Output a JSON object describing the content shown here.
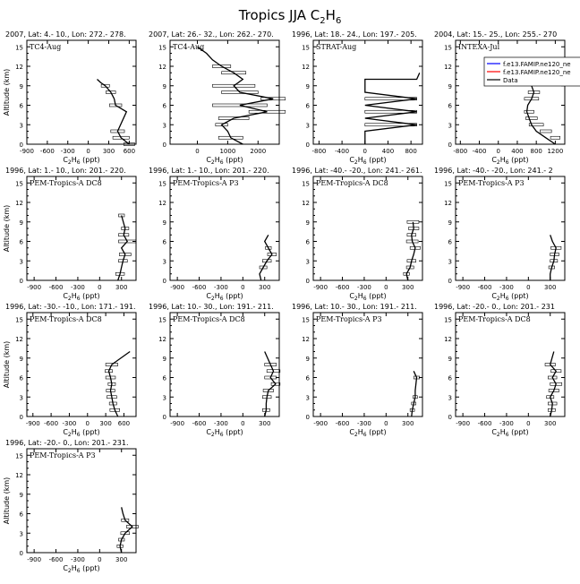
{
  "figure": {
    "title": "Tropics JJA C",
    "title_sub": "2",
    "title_tail": "H",
    "title_sub2": "6"
  },
  "common": {
    "ylabel": "Altitude (km)",
    "xlabel_main": "C",
    "xlabel_sub1": "2",
    "xlabel_mid": "H",
    "xlabel_sub2": "6",
    "xlabel_unit": " (ppt)",
    "yticks": [
      "0",
      "3",
      "6",
      "9",
      "12",
      "15"
    ],
    "colors": {
      "line": "#000000",
      "bar": "#000000",
      "model_blue": "#0000ff",
      "model_red": "#ff0000"
    }
  },
  "chart_data": [
    {
      "type": "line",
      "header": "2007, Lat: 4.- 10., Lon: 272.- 278.",
      "campaign": "TC4-Aug",
      "xlim": [
        -900,
        700
      ],
      "ylim": [
        0,
        16
      ],
      "xticks": [
        -900,
        -600,
        -300,
        0,
        300,
        600
      ],
      "x": [
        600,
        480,
        430,
        560,
        400,
        380,
        330,
        250,
        180,
        130
      ],
      "y": [
        0,
        1,
        2,
        5,
        6,
        7,
        8,
        9,
        9.5,
        10
      ],
      "bars": [
        [
          600,
          0,
          80
        ],
        [
          480,
          1,
          120
        ],
        [
          430,
          2,
          100
        ],
        [
          400,
          6,
          90
        ],
        [
          330,
          8,
          70
        ],
        [
          250,
          9,
          60
        ]
      ]
    },
    {
      "type": "line",
      "header": "2007, Lat: 26.- 32., Lon: 262.- 270.",
      "campaign": "TC4-Aug",
      "xlim": [
        -900,
        2700
      ],
      "ylim": [
        0,
        16
      ],
      "xticks": [
        0,
        1000,
        2000
      ],
      "x": [
        1500,
        1100,
        1000,
        800,
        1200,
        2300,
        1400,
        2500,
        1400,
        1200,
        1500,
        1200,
        800,
        500,
        300,
        0
      ],
      "y": [
        0,
        1,
        2,
        3,
        4,
        5,
        6,
        7,
        8,
        9,
        10,
        11,
        12,
        13,
        14,
        15
      ],
      "bars": [
        [
          1100,
          1,
          400
        ],
        [
          800,
          3,
          200
        ],
        [
          1200,
          4,
          500
        ],
        [
          2300,
          5,
          600
        ],
        [
          1400,
          6,
          900
        ],
        [
          2500,
          7,
          400
        ],
        [
          1400,
          8,
          600
        ],
        [
          1200,
          9,
          700
        ],
        [
          1200,
          11,
          400
        ],
        [
          800,
          12,
          300
        ]
      ]
    },
    {
      "type": "line",
      "header": "1996, Lat: 18.- 24., Lon: 197.- 205.",
      "campaign": "STRAT-Aug",
      "xlim": [
        -900,
        1000
      ],
      "ylim": [
        0,
        16
      ],
      "xticks": [
        -800,
        -400,
        0,
        400,
        800
      ],
      "x": [
        0,
        0,
        0,
        900,
        0,
        900,
        0,
        900,
        0,
        0,
        0,
        900,
        950
      ],
      "y": [
        0,
        1,
        2,
        3,
        4,
        5,
        6,
        7,
        8,
        9,
        10,
        10,
        11
      ],
      "bars": [
        [
          450,
          3,
          450
        ],
        [
          450,
          5,
          450
        ],
        [
          450,
          7,
          450
        ]
      ]
    },
    {
      "type": "line",
      "header": "2004, Lat: 15.- 25., Lon: 255.- 270",
      "campaign": "INTEXA-Jul",
      "xlim": [
        -900,
        1400
      ],
      "ylim": [
        0,
        16
      ],
      "xticks": [
        -800,
        -400,
        0,
        400,
        800,
        1200
      ],
      "x": [
        1200,
        1000,
        800,
        700,
        650,
        600,
        620,
        700,
        750,
        700
      ],
      "y": [
        0,
        1,
        2,
        3,
        4,
        5,
        6,
        7,
        8,
        9
      ],
      "bars": [
        [
          1200,
          1,
          100
        ],
        [
          1000,
          2,
          120
        ],
        [
          800,
          3,
          150
        ],
        [
          700,
          4,
          120
        ],
        [
          650,
          5,
          100
        ],
        [
          700,
          7,
          150
        ],
        [
          750,
          8,
          120
        ]
      ],
      "legend": [
        "f.e13.FAMIP.ne120_ne",
        "f.e13.FAMIP.ne120_ne",
        "Data"
      ]
    },
    {
      "type": "line",
      "header": "1996, Lat: 1.- 10., Lon: 201.- 220.",
      "campaign": "PEM-Tropics-A DC8",
      "xlim": [
        -1000,
        500
      ],
      "ylim": [
        0,
        16
      ],
      "xticks": [
        -900,
        -600,
        -300,
        0,
        300
      ],
      "x": [
        250,
        280,
        300,
        320,
        350,
        300,
        380,
        330,
        350,
        300
      ],
      "y": [
        0,
        1,
        2,
        3,
        4,
        5,
        6,
        7,
        8,
        10
      ],
      "bars": [
        [
          280,
          1,
          60
        ],
        [
          320,
          3,
          60
        ],
        [
          350,
          4,
          80
        ],
        [
          380,
          6,
          120
        ],
        [
          330,
          7,
          70
        ],
        [
          350,
          8,
          50
        ],
        [
          300,
          10,
          40
        ]
      ]
    },
    {
      "type": "line",
      "header": "1996, Lat: 1.- 10., Lon: 201.- 220.",
      "campaign": "PEM-Tropics-A P3",
      "xlim": [
        -1000,
        500
      ],
      "ylim": [
        0,
        16
      ],
      "xticks": [
        -900,
        -600,
        -300,
        0,
        300
      ],
      "x": [
        250,
        230,
        280,
        330,
        400,
        350,
        300,
        350
      ],
      "y": [
        0,
        1,
        2,
        3,
        4,
        5,
        6,
        7
      ],
      "bars": [
        [
          280,
          2,
          50
        ],
        [
          330,
          3,
          60
        ],
        [
          400,
          4,
          60
        ],
        [
          350,
          5,
          40
        ]
      ]
    },
    {
      "type": "line",
      "header": "1996, Lat: -40.- -20., Lon: 241.- 261.",
      "campaign": "PEM-Tropics-A DC8",
      "xlim": [
        -1000,
        500
      ],
      "ylim": [
        0,
        16
      ],
      "xticks": [
        -900,
        -600,
        -300,
        0,
        300
      ],
      "x": [
        300,
        280,
        330,
        350,
        380,
        400,
        360,
        350,
        380,
        370
      ],
      "y": [
        0,
        1,
        2,
        3,
        4,
        5,
        6,
        7,
        8,
        9
      ],
      "bars": [
        [
          280,
          1,
          40
        ],
        [
          330,
          2,
          50
        ],
        [
          350,
          3,
          60
        ],
        [
          400,
          5,
          70
        ],
        [
          360,
          6,
          80
        ],
        [
          350,
          7,
          60
        ],
        [
          380,
          8,
          70
        ],
        [
          370,
          9,
          80
        ]
      ]
    },
    {
      "type": "line",
      "header": "1996, Lat: -40.- -20., Lon: 241.- 2",
      "campaign": "PEM-Tropics-A P3",
      "xlim": [
        -1000,
        500
      ],
      "ylim": [
        0,
        16
      ],
      "xticks": [
        -900,
        -600,
        -300,
        0,
        300
      ],
      "x": [
        300,
        300,
        320,
        350,
        360,
        380,
        330,
        300
      ],
      "y": [
        0,
        1,
        2,
        3,
        4,
        5,
        6,
        7
      ],
      "bars": [
        [
          320,
          2,
          40
        ],
        [
          350,
          3,
          50
        ],
        [
          360,
          4,
          60
        ],
        [
          380,
          5,
          70
        ]
      ]
    },
    {
      "type": "line",
      "header": "1996, Lat: -30.- -10., Lon: 171.- 191.",
      "campaign": "PEM-Tropics-A DC8",
      "xlim": [
        -1000,
        800
      ],
      "ylim": [
        0,
        16
      ],
      "xticks": [
        -900,
        -600,
        -300,
        0,
        300,
        600
      ],
      "x": [
        500,
        450,
        420,
        400,
        380,
        400,
        380,
        350,
        400,
        700
      ],
      "y": [
        0,
        1,
        2,
        3,
        4,
        5,
        6,
        7,
        8,
        10
      ],
      "bars": [
        [
          450,
          1,
          80
        ],
        [
          420,
          2,
          60
        ],
        [
          400,
          3,
          80
        ],
        [
          380,
          4,
          70
        ],
        [
          400,
          5,
          60
        ],
        [
          380,
          6,
          80
        ],
        [
          350,
          7,
          60
        ],
        [
          400,
          8,
          100
        ]
      ]
    },
    {
      "type": "line",
      "header": "1996, Lat: 10.- 30., Lon: 191.- 211.",
      "campaign": "PEM-Tropics-A DC8",
      "xlim": [
        -1000,
        500
      ],
      "ylim": [
        0,
        16
      ],
      "xticks": [
        -900,
        -600,
        -300,
        0,
        300
      ],
      "x": [
        300,
        320,
        320,
        330,
        350,
        450,
        380,
        420,
        380,
        300
      ],
      "y": [
        0,
        1,
        2,
        3,
        4,
        5,
        6,
        7,
        8,
        10
      ],
      "bars": [
        [
          320,
          1,
          50
        ],
        [
          330,
          3,
          60
        ],
        [
          350,
          4,
          70
        ],
        [
          450,
          5,
          60
        ],
        [
          380,
          6,
          80
        ],
        [
          420,
          7,
          90
        ],
        [
          380,
          8,
          80
        ]
      ]
    },
    {
      "type": "line",
      "header": "1996, Lat: 10.- 30., Lon: 191.- 211.",
      "campaign": "PEM-Tropics-A P3",
      "xlim": [
        -1000,
        500
      ],
      "ylim": [
        0,
        16
      ],
      "xticks": [
        -900,
        -600,
        -300,
        0,
        300
      ],
      "x": [
        350,
        360,
        380,
        400,
        400,
        420,
        380
      ],
      "y": [
        0,
        1,
        2,
        3,
        4,
        6,
        7
      ],
      "bars": [
        [
          360,
          1,
          30
        ],
        [
          380,
          2,
          30
        ],
        [
          400,
          3,
          30
        ],
        [
          420,
          6,
          40
        ]
      ]
    },
    {
      "type": "line",
      "header": "1996, Lat: -20.- 0., Lon: 201.- 231",
      "campaign": "PEM-Tropics-A DC8",
      "xlim": [
        -1000,
        500
      ],
      "ylim": [
        0,
        16
      ],
      "xticks": [
        -900,
        -600,
        -300,
        0,
        300
      ],
      "x": [
        300,
        320,
        330,
        300,
        350,
        380,
        330,
        380,
        300,
        350
      ],
      "y": [
        0,
        1,
        2,
        3,
        4,
        5,
        6,
        7,
        8,
        10
      ],
      "bars": [
        [
          320,
          1,
          50
        ],
        [
          330,
          2,
          60
        ],
        [
          300,
          3,
          50
        ],
        [
          350,
          4,
          70
        ],
        [
          380,
          5,
          80
        ],
        [
          330,
          6,
          60
        ],
        [
          380,
          7,
          70
        ],
        [
          300,
          8,
          70
        ]
      ]
    },
    {
      "type": "line",
      "header": "1996, Lat: -20.- 0., Lon: 201.- 231.",
      "campaign": "PEM-Tropics-A P3",
      "xlim": [
        -1000,
        500
      ],
      "ylim": [
        0,
        16
      ],
      "xticks": [
        -900,
        -600,
        -300,
        0,
        300
      ],
      "x": [
        300,
        280,
        300,
        350,
        450,
        350,
        320,
        300
      ],
      "y": [
        0,
        1,
        2,
        3,
        4,
        5,
        6,
        7
      ],
      "bars": [
        [
          280,
          1,
          40
        ],
        [
          300,
          2,
          40
        ],
        [
          350,
          3,
          60
        ],
        [
          450,
          4,
          80
        ],
        [
          350,
          5,
          50
        ]
      ]
    }
  ]
}
